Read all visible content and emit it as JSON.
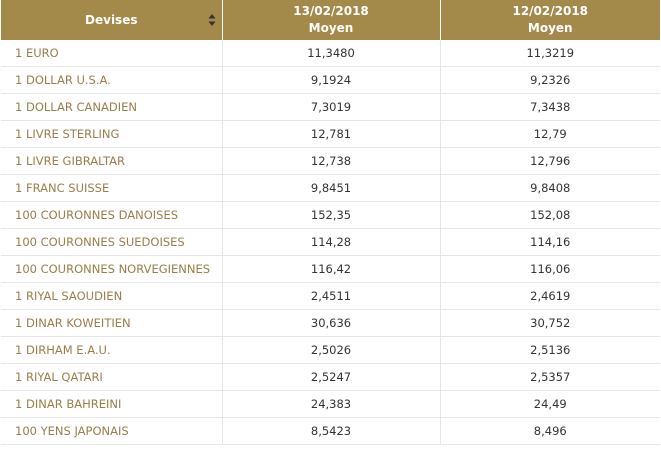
{
  "table": {
    "header": {
      "currency": "Devises",
      "col1_date": "13/02/2018",
      "col1_sub": "Moyen",
      "col2_date": "12/02/2018",
      "col2_sub": "Moyen"
    },
    "rows": [
      [
        "1 EURO",
        "11,3480",
        "11,3219"
      ],
      [
        "1 DOLLAR U.S.A.",
        "9,1924",
        "9,2326"
      ],
      [
        "1 DOLLAR CANADIEN",
        "7,3019",
        "7,3438"
      ],
      [
        "1 LIVRE STERLING",
        "12,781",
        "12,79"
      ],
      [
        "1 LIVRE GIBRALTAR",
        "12,738",
        "12,796"
      ],
      [
        "1 FRANC SUISSE",
        "9,8451",
        "9,8408"
      ],
      [
        "100 COURONNES DANOISES",
        "152,35",
        "152,08"
      ],
      [
        "100 COURONNES SUEDOISES",
        "114,28",
        "114,16"
      ],
      [
        "100 COURONNES NORVEGIENNES",
        "116,42",
        "116,06"
      ],
      [
        "1 RIYAL SAOUDIEN",
        "2,4511",
        "2,4619"
      ],
      [
        "1 DINAR KOWEITIEN",
        "30,636",
        "30,752"
      ],
      [
        "1 DIRHAM E.A.U.",
        "2,5026",
        "2,5136"
      ],
      [
        "1 RIYAL QATARI",
        "2,5247",
        "2,5357"
      ],
      [
        "1 DINAR BAHREINI",
        "24,383",
        "24,49"
      ],
      [
        "100 YENS JAPONAIS",
        "8,5423",
        "8,496"
      ]
    ]
  }
}
